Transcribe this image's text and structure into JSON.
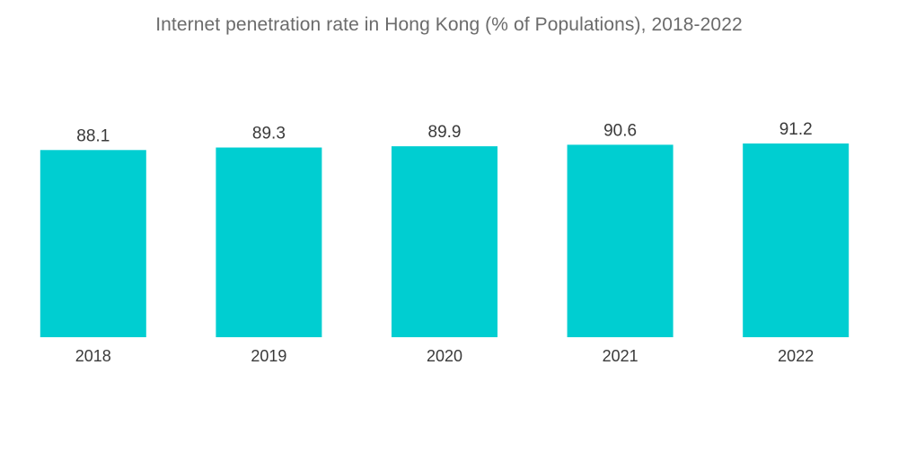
{
  "chart_data": {
    "type": "bar",
    "title": "Internet penetration rate in Hong Kong (% of Populations), 2018-2022",
    "xlabel": "",
    "ylabel": "",
    "categories": [
      "2018",
      "2019",
      "2020",
      "2021",
      "2022"
    ],
    "values": [
      88.1,
      89.3,
      89.9,
      90.6,
      91.2
    ],
    "data_labels": [
      "88.1",
      "89.3",
      "89.9",
      "90.6",
      "91.2"
    ],
    "bar_color": "#00ced1",
    "grid": false,
    "legend": "none"
  }
}
